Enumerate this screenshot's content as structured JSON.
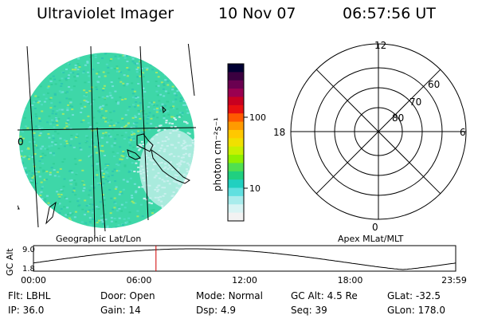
{
  "header": {
    "instrument": "Ultraviolet Imager",
    "date": "10 Nov 07",
    "time": "06:57:56 UT"
  },
  "image_panel": {
    "label_left": "0",
    "caption": "Geographic Lat/Lon"
  },
  "colorbar": {
    "unit_label": "photon cm⁻²s⁻¹",
    "tick_100": "100",
    "tick_10": "10",
    "colors": [
      "#000033",
      "#3a0040",
      "#6a0050",
      "#9a0050",
      "#c80020",
      "#e81010",
      "#ff5a00",
      "#ff9a00",
      "#ffc800",
      "#f0e000",
      "#c8f000",
      "#90f000",
      "#50e050",
      "#20d080",
      "#20d0c0",
      "#60e0e0",
      "#a8ecec",
      "#d8f4f4",
      "#f2f2f2"
    ]
  },
  "polar": {
    "label_12": "12",
    "label_6": "6",
    "label_18": "18",
    "label_0": "0",
    "lat_60": "60",
    "lat_70": "70",
    "lat_80": "80",
    "caption": "Apex MLat/MLT"
  },
  "altitude_plot": {
    "ylabel": "GC Alt",
    "y_top": "9.0",
    "y_bottom": "1.8",
    "x_ticks": [
      "00:00",
      "06:00",
      "12:00",
      "18:00",
      "23:59"
    ],
    "current_marker_time": "06:57:56"
  },
  "status": {
    "row1": [
      {
        "label": "Flt:",
        "value": "LBHL"
      },
      {
        "label": "Door:",
        "value": "Open"
      },
      {
        "label": "Mode:",
        "value": "Normal"
      },
      {
        "label": "GC Alt:",
        "value": "4.5 Re"
      },
      {
        "label": "GLat:",
        "value": "-32.5"
      }
    ],
    "row2": [
      {
        "label": "IP:",
        "value": "36.0"
      },
      {
        "label": "Gain:",
        "value": "14"
      },
      {
        "label": "Dsp:",
        "value": "4.9"
      },
      {
        "label": "Seq:",
        "value": "39"
      },
      {
        "label": "GLon:",
        "value": "178.0"
      }
    ]
  }
}
